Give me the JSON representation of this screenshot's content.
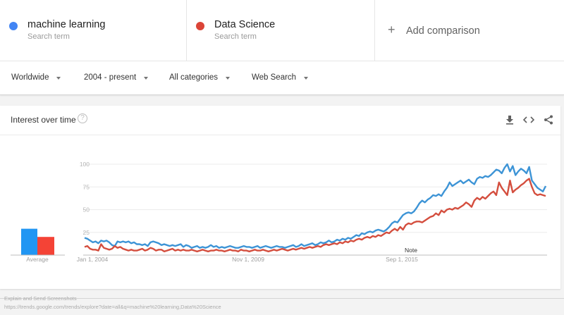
{
  "terms": [
    {
      "name": "machine learning",
      "sub": "Search term",
      "color": "#4285f4"
    },
    {
      "name": "Data Science",
      "sub": "Search term",
      "color": "#db4437"
    }
  ],
  "add_comparison": {
    "label": "Add comparison",
    "icon": "plus-icon"
  },
  "filters": [
    {
      "label": "Worldwide"
    },
    {
      "label": "2004 - present"
    },
    {
      "label": "All categories"
    },
    {
      "label": "Web Search"
    }
  ],
  "card": {
    "title": "Interest over time",
    "help_icon": "?",
    "actions": [
      "download-icon",
      "embed-icon",
      "share-icon"
    ]
  },
  "footer": {
    "line1": "Explain and Send Screenshots",
    "line2": "https://trends.google.com/trends/explore?date=all&q=machine%20learning,Data%20Science"
  },
  "chart_data": {
    "type": "line",
    "title": "Interest over time",
    "xlabel": "",
    "ylabel": "",
    "ylim": [
      0,
      100
    ],
    "yticks": [
      25,
      50,
      75,
      100
    ],
    "xticks": [
      "Jan 1, 2004",
      "Nov 1, 2009",
      "Sep 1, 2015"
    ],
    "x_range": [
      "Jan 2004",
      "2019"
    ],
    "grid": true,
    "annotation": "Note",
    "series": [
      {
        "name": "machine learning",
        "color": "#3d94d6",
        "values": [
          19,
          18,
          16,
          14,
          15,
          13,
          16,
          15,
          16,
          14,
          11,
          10,
          15,
          14,
          15,
          14,
          15,
          13,
          14,
          12,
          12,
          11,
          12,
          10,
          14,
          15,
          14,
          13,
          11,
          12,
          11,
          10,
          11,
          10,
          11,
          12,
          9,
          11,
          10,
          8,
          9,
          10,
          8,
          9,
          8,
          9,
          11,
          9,
          10,
          8,
          9,
          8,
          9,
          10,
          9,
          8,
          8,
          9,
          10,
          9,
          9,
          8,
          9,
          10,
          8,
          9,
          10,
          9,
          8,
          9,
          10,
          9,
          9,
          8,
          9,
          10,
          11,
          9,
          10,
          12,
          10,
          11,
          12,
          13,
          11,
          12,
          14,
          13,
          14,
          16,
          14,
          15,
          17,
          16,
          18,
          17,
          19,
          18,
          20,
          22,
          21,
          24,
          23,
          25,
          26,
          25,
          27,
          28,
          27,
          26,
          28,
          31,
          35,
          37,
          36,
          40,
          44,
          46,
          47,
          46,
          48,
          52,
          57,
          60,
          58,
          61,
          63,
          66,
          65,
          67,
          65,
          70,
          74,
          80,
          76,
          78,
          80,
          82,
          79,
          81,
          83,
          80,
          78,
          84,
          86,
          85,
          87,
          86,
          88,
          91,
          94,
          93,
          90,
          96,
          100,
          92,
          98,
          88,
          92,
          95,
          93,
          90,
          97,
          82,
          78,
          74,
          72,
          70,
          76
        ],
        "avg": 29
      },
      {
        "name": "Data Science",
        "color": "#d44e3e",
        "values": [
          9,
          10,
          7,
          6,
          6,
          5,
          12,
          8,
          7,
          6,
          7,
          10,
          8,
          9,
          7,
          6,
          5,
          6,
          5,
          5,
          6,
          7,
          5,
          6,
          8,
          7,
          5,
          6,
          6,
          4,
          5,
          6,
          7,
          5,
          6,
          5,
          6,
          5,
          5,
          6,
          5,
          4,
          5,
          6,
          5,
          4,
          5,
          5,
          6,
          5,
          5,
          4,
          5,
          6,
          5,
          5,
          4,
          6,
          5,
          5,
          4,
          5,
          6,
          5,
          5,
          6,
          5,
          4,
          5,
          6,
          5,
          6,
          7,
          6,
          5,
          6,
          7,
          6,
          7,
          8,
          7,
          8,
          9,
          8,
          9,
          10,
          9,
          11,
          12,
          11,
          12,
          13,
          12,
          14,
          13,
          15,
          14,
          16,
          15,
          17,
          18,
          17,
          19,
          20,
          19,
          21,
          20,
          22,
          21,
          23,
          25,
          24,
          27,
          29,
          27,
          31,
          28,
          33,
          35,
          34,
          36,
          37,
          37,
          36,
          38,
          40,
          42,
          43,
          46,
          44,
          49,
          47,
          50,
          51,
          50,
          52,
          51,
          53,
          55,
          58,
          56,
          53,
          60,
          63,
          61,
          64,
          62,
          65,
          68,
          70,
          66,
          80,
          74,
          70,
          66,
          82,
          69,
          72,
          74,
          77,
          79,
          82,
          84,
          75,
          68,
          66,
          67,
          66,
          65
        ],
        "avg": 20
      }
    ]
  },
  "average": {
    "label": "Average",
    "ml_value": 29,
    "ds_value": 20
  }
}
